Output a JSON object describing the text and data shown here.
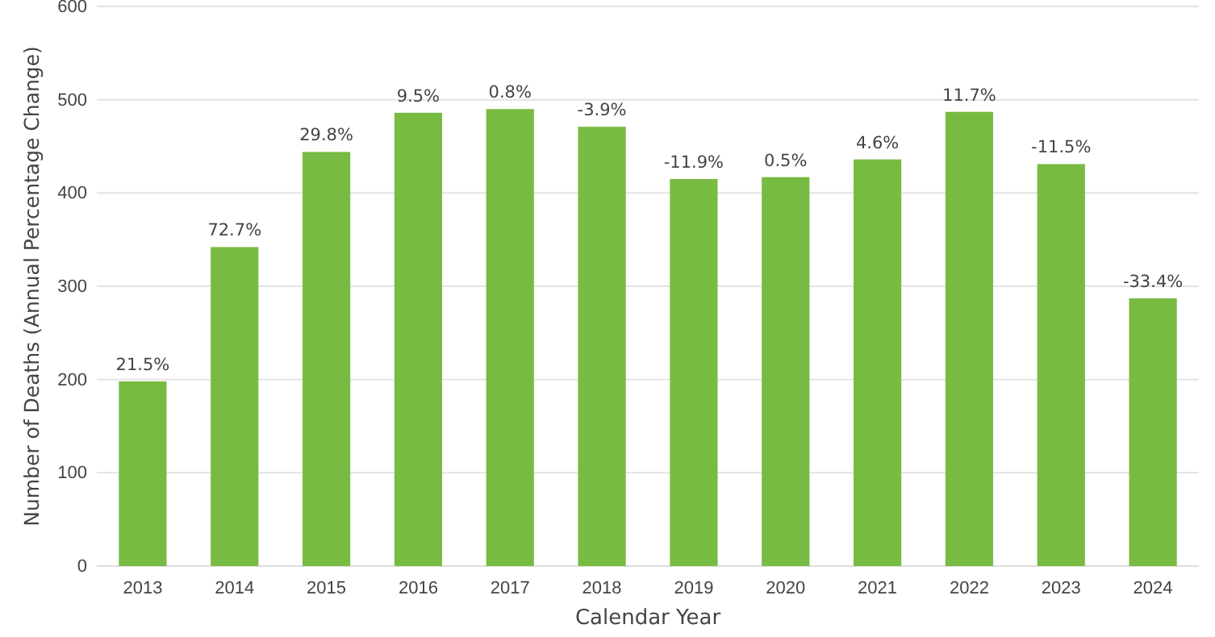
{
  "chart_data": {
    "type": "bar",
    "xlabel": "Calendar Year",
    "ylabel": "Number of Deaths (Annual Percentage Change)",
    "categories": [
      "2013",
      "2014",
      "2015",
      "2016",
      "2017",
      "2018",
      "2019",
      "2020",
      "2021",
      "2022",
      "2023",
      "2024"
    ],
    "values": [
      198,
      342,
      444,
      486,
      490,
      471,
      415,
      417,
      436,
      487,
      431,
      287
    ],
    "annotations": [
      {
        "text": "21.5%",
        "x": "2013",
        "y": 198
      },
      {
        "text": "72.7%",
        "x": "2014",
        "y": 342
      },
      {
        "text": "29.8%",
        "x": "2015",
        "y": 444
      },
      {
        "text": "9.5%",
        "x": "2016",
        "y": 486
      },
      {
        "text": "0.8%",
        "x": "2017",
        "y": 490
      },
      {
        "text": "-3.9%",
        "x": "2018",
        "y": 471
      },
      {
        "text": "-11.9%",
        "x": "2019",
        "y": 415
      },
      {
        "text": "0.5%",
        "x": "2020",
        "y": 417
      },
      {
        "text": "4.6%",
        "x": "2021",
        "y": 436
      },
      {
        "text": "11.7%",
        "x": "2022",
        "y": 487
      },
      {
        "text": "-11.5%",
        "x": "2023",
        "y": 431
      },
      {
        "text": "-33.4%",
        "x": "2024",
        "y": 287
      }
    ],
    "color": "#78bb43",
    "ylim": [
      0,
      600
    ],
    "yticks": [
      0,
      100,
      200,
      300,
      400,
      500,
      600
    ],
    "grid": "y"
  }
}
